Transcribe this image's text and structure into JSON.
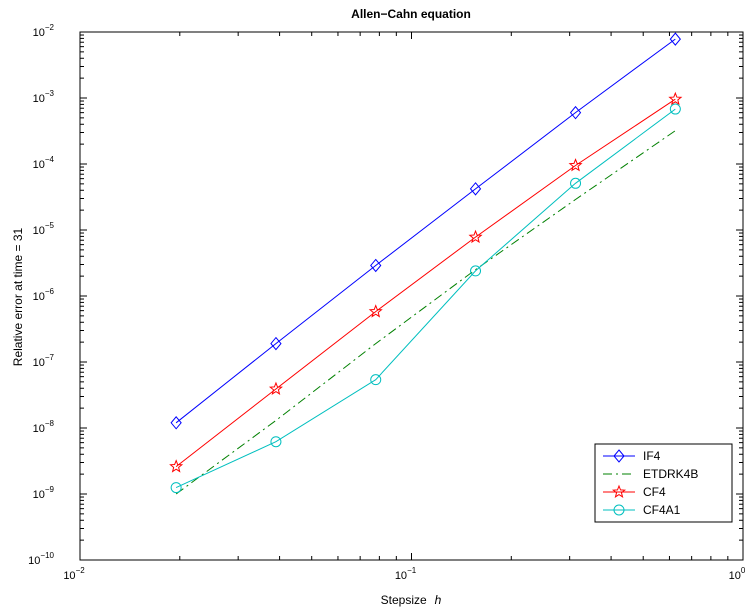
{
  "chart_data": {
    "type": "line",
    "title": "Allen−Cahn equation",
    "xlabel": "Stepsize",
    "xlabel_var": "h",
    "ylabel": "Relative error at time = 31",
    "xscale": "log",
    "yscale": "log",
    "xlim": [
      0.01,
      1
    ],
    "ylim": [
      1e-10,
      0.01
    ],
    "grid": false,
    "legend_position": "lower-right",
    "x_ticks": [
      {
        "base": "10",
        "exp": "−2",
        "value": 0.01
      },
      {
        "base": "10",
        "exp": "−1",
        "value": 0.1
      },
      {
        "base": "10",
        "exp": "0",
        "value": 1
      }
    ],
    "y_ticks": [
      {
        "base": "10",
        "exp": "−10",
        "value": 1e-10
      },
      {
        "base": "10",
        "exp": "−9",
        "value": 1e-09
      },
      {
        "base": "10",
        "exp": "−8",
        "value": 1e-08
      },
      {
        "base": "10",
        "exp": "−7",
        "value": 1e-07
      },
      {
        "base": "10",
        "exp": "−6",
        "value": 1e-06
      },
      {
        "base": "10",
        "exp": "−5",
        "value": 1e-05
      },
      {
        "base": "10",
        "exp": "−4",
        "value": 0.0001
      },
      {
        "base": "10",
        "exp": "−3",
        "value": 0.001
      },
      {
        "base": "10",
        "exp": "−2",
        "value": 0.01
      }
    ],
    "series": [
      {
        "name": "IF4",
        "color": "#0000ff",
        "line_style": "solid",
        "marker": "diamond",
        "x": [
          0.0195,
          0.039,
          0.078,
          0.156,
          0.3125,
          0.625
        ],
        "y": [
          1.2e-08,
          1.9e-07,
          2.9e-06,
          4.2e-05,
          0.0006,
          0.0078
        ]
      },
      {
        "name": "ETDRK4B",
        "color": "#008000",
        "line_style": "dashdot",
        "marker": "none",
        "x": [
          0.0195,
          0.039,
          0.078,
          0.156,
          0.3125,
          0.625
        ],
        "y": [
          1e-09,
          1.3e-08,
          1.9e-07,
          2.5e-06,
          2.9e-05,
          0.00032
        ]
      },
      {
        "name": "CF4",
        "color": "#ff0000",
        "line_style": "solid",
        "marker": "star",
        "x": [
          0.0195,
          0.039,
          0.078,
          0.156,
          0.3125,
          0.625
        ],
        "y": [
          2.6e-09,
          3.9e-08,
          5.8e-07,
          7.8e-06,
          9.5e-05,
          0.00096
        ]
      },
      {
        "name": "CF4A1",
        "color": "#00bfbf",
        "line_style": "solid",
        "marker": "circle",
        "x": [
          0.0195,
          0.039,
          0.078,
          0.156,
          0.3125,
          0.625
        ],
        "y": [
          1.25e-09,
          6.2e-09,
          5.4e-08,
          2.4e-06,
          5.1e-05,
          0.00068
        ]
      }
    ]
  }
}
